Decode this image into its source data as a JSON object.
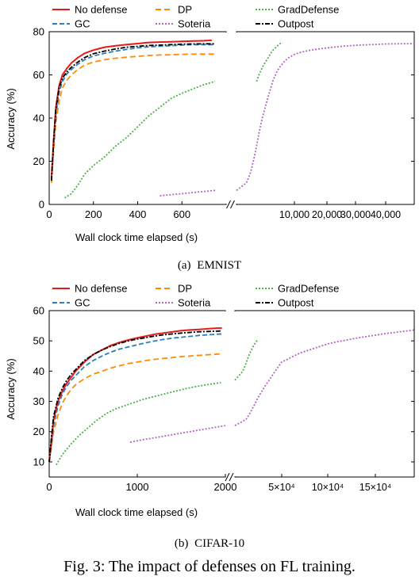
{
  "figure_caption": "Fig. 3: The impact of defenses on FL training.",
  "series_styles": {
    "No defense": {
      "color": "#e41a1c",
      "dash": ""
    },
    "DP": {
      "color": "#ff8c00",
      "dash": "7,4"
    },
    "GradDefense": {
      "color": "#4daf4a",
      "dash": "2,2"
    },
    "GC": {
      "color": "#2c7fb8",
      "dash": "6,3"
    },
    "Soteria": {
      "color": "#b266c2",
      "dash": "2,2"
    },
    "Outpost": {
      "color": "#000000",
      "dash": "6,2,2,2"
    }
  },
  "chart_data": [
    {
      "type": "line",
      "subcaption": "(a)",
      "dataset": "EMNIST",
      "xlabel": "Wall clock time elapsed (s)",
      "ylabel": "Accuracy (%)",
      "ylim": [
        0,
        80
      ],
      "yticks": [
        "0",
        "20",
        "40",
        "60",
        "80"
      ],
      "grid": false,
      "legend_placement": "top",
      "left_panel": {
        "xlim": [
          0,
          800
        ],
        "xticks": [
          "0",
          "200",
          "400",
          "600"
        ],
        "xtick_values": [
          0,
          200,
          400,
          600
        ]
      },
      "right_panel": {
        "xlim": [
          0,
          45000
        ],
        "xticks": [
          "10,000",
          "20,000",
          "30,000",
          "40,000"
        ],
        "xtick_values": [
          10000,
          20000,
          30000,
          40000
        ]
      },
      "series": [
        {
          "name": "No defense",
          "panel": "left",
          "x": [
            10,
            20,
            30,
            45,
            60,
            80,
            100,
            130,
            160,
            200,
            250,
            300,
            350,
            400,
            450,
            500,
            550,
            600,
            650,
            700,
            735
          ],
          "y": [
            12,
            30,
            45,
            55,
            60,
            63,
            65.5,
            68,
            70,
            71.5,
            72.8,
            73.5,
            74,
            74.5,
            75,
            75.2,
            75.3,
            75.5,
            75.7,
            75.8,
            76
          ]
        },
        {
          "name": "GC",
          "panel": "left",
          "x": [
            10,
            20,
            30,
            45,
            60,
            80,
            100,
            130,
            160,
            200,
            250,
            300,
            350,
            400,
            450,
            500,
            550,
            600,
            650,
            700,
            745
          ],
          "y": [
            11,
            28,
            42,
            52,
            57,
            60.5,
            62.5,
            65,
            67,
            68.8,
            70,
            71,
            71.8,
            72.5,
            73,
            73.3,
            73.5,
            73.8,
            74,
            74,
            74
          ]
        },
        {
          "name": "DP",
          "panel": "left",
          "x": [
            10,
            20,
            30,
            45,
            60,
            80,
            100,
            130,
            160,
            200,
            250,
            300,
            350,
            400,
            450,
            500,
            550,
            600,
            650,
            700,
            745
          ],
          "y": [
            10,
            25,
            38,
            48,
            54,
            57.5,
            60,
            62.5,
            64.5,
            66,
            67,
            67.7,
            68.2,
            68.6,
            69,
            69.2,
            69.3,
            69.5,
            69.6,
            69.6,
            69.6
          ]
        },
        {
          "name": "Outpost",
          "panel": "left",
          "x": [
            10,
            20,
            30,
            45,
            60,
            80,
            100,
            130,
            160,
            200,
            250,
            300,
            350,
            400,
            450,
            500,
            550,
            600,
            650,
            700,
            745
          ],
          "y": [
            11,
            29,
            44,
            54,
            58.5,
            61.5,
            63.5,
            66,
            68,
            69.8,
            71,
            72,
            72.8,
            73.2,
            73.6,
            73.8,
            74,
            74.2,
            74.3,
            74.4,
            74.4
          ]
        },
        {
          "name": "GradDefense",
          "panel": "left",
          "x": [
            70,
            100,
            130,
            160,
            200,
            250,
            300,
            350,
            400,
            450,
            500,
            550,
            600,
            650,
            700,
            750
          ],
          "y": [
            3,
            5,
            9,
            14,
            18,
            22,
            27,
            31,
            36,
            41,
            45,
            49,
            51.5,
            53.5,
            55.5,
            57
          ]
        },
        {
          "name": "GradDefense",
          "panel": "right",
          "x": [
            1200,
            1500,
            2000,
            2500,
            3000,
            3500,
            4000,
            4500,
            5000,
            5500,
            6000
          ],
          "y": [
            57,
            60,
            63.5,
            66,
            68,
            70,
            71.5,
            72.5,
            73.5,
            74.2,
            75
          ]
        },
        {
          "name": "Soteria",
          "panel": "left",
          "x": [
            500,
            550,
            600,
            650,
            700,
            750
          ],
          "y": [
            4,
            4.5,
            5,
            5.5,
            6,
            6.5
          ]
        },
        {
          "name": "Soteria",
          "panel": "right",
          "x": [
            0,
            300,
            600,
            900,
            1200,
            1500,
            2000,
            2500,
            3000,
            3500,
            4000,
            5000,
            6000,
            7000,
            8000,
            10000,
            12000,
            15000,
            20000,
            25000,
            30000,
            35000,
            40000,
            45000
          ],
          "y": [
            6.5,
            10,
            15,
            21,
            27,
            33,
            40,
            45.5,
            50,
            54,
            57.5,
            62,
            64.5,
            66.5,
            67.8,
            69.5,
            70.5,
            71.5,
            72.5,
            73.2,
            73.7,
            74,
            74.3,
            74.5
          ]
        }
      ]
    },
    {
      "type": "line",
      "subcaption": "(b)",
      "dataset": "CIFAR-10",
      "xlabel": "Wall clock time elapsed (s)",
      "ylabel": "Accuracy (%)",
      "ylim": [
        5,
        60
      ],
      "yticks": [
        "10",
        "20",
        "30",
        "40",
        "50",
        "60"
      ],
      "grid": false,
      "legend_placement": "top",
      "left_panel": {
        "xlim": [
          0,
          2000
        ],
        "xticks": [
          "0",
          "1000",
          "2000"
        ],
        "xtick_values": [
          0,
          1000,
          2000
        ]
      },
      "right_panel": {
        "xlim": [
          0,
          190000
        ],
        "xticks": [
          "5×10⁴",
          "10×10⁴",
          "15×10⁴"
        ],
        "xtick_values": [
          50000,
          100000,
          150000
        ]
      },
      "series": [
        {
          "name": "No defense",
          "panel": "left",
          "x": [
            0,
            25,
            50,
            100,
            150,
            200,
            250,
            300,
            400,
            500,
            600,
            700,
            800,
            900,
            1000,
            1100,
            1200,
            1300,
            1400,
            1500,
            1600,
            1700,
            1800,
            1900,
            1960
          ],
          "y": [
            10,
            17,
            24,
            30,
            33.5,
            36,
            38,
            40,
            43,
            45.5,
            47,
            48.5,
            49.5,
            50.3,
            51,
            51.6,
            52.2,
            52.6,
            53,
            53.4,
            53.6,
            53.8,
            54,
            54.2,
            54.2
          ]
        },
        {
          "name": "GC",
          "panel": "left",
          "x": [
            0,
            25,
            50,
            100,
            150,
            200,
            250,
            300,
            400,
            500,
            600,
            700,
            800,
            900,
            1000,
            1100,
            1200,
            1300,
            1400,
            1500,
            1600,
            1700,
            1800,
            1900,
            1960
          ],
          "y": [
            10,
            16,
            22,
            28.5,
            32.5,
            35,
            37,
            38.5,
            41.5,
            43.5,
            45,
            46.3,
            47.3,
            48,
            48.7,
            49.4,
            50,
            50.5,
            50.9,
            51.2,
            51.5,
            51.8,
            52,
            52.2,
            52.3
          ]
        },
        {
          "name": "DP",
          "panel": "left",
          "x": [
            0,
            25,
            50,
            100,
            150,
            200,
            250,
            300,
            400,
            500,
            600,
            700,
            800,
            900,
            1000,
            1100,
            1200,
            1300,
            1400,
            1500,
            1600,
            1700,
            1800,
            1900,
            1960
          ],
          "y": [
            10,
            15,
            20,
            25.5,
            29.5,
            32,
            34,
            35.5,
            37.5,
            39,
            40,
            41,
            41.8,
            42.5,
            43,
            43.5,
            43.9,
            44.2,
            44.5,
            44.8,
            45,
            45.2,
            45.4,
            45.6,
            45.7
          ]
        },
        {
          "name": "Outpost",
          "panel": "left",
          "x": [
            0,
            25,
            50,
            100,
            150,
            200,
            250,
            300,
            400,
            500,
            600,
            700,
            800,
            900,
            1000,
            1100,
            1200,
            1300,
            1400,
            1500,
            1600,
            1700,
            1800,
            1900,
            1960
          ],
          "y": [
            10,
            18,
            25,
            31,
            34.5,
            37,
            39,
            40.5,
            43.5,
            45.5,
            47,
            48.2,
            49.2,
            50,
            50.6,
            51.1,
            51.6,
            52,
            52.3,
            52.6,
            52.8,
            53,
            53.1,
            53.2,
            53.3
          ]
        },
        {
          "name": "GradDefense",
          "panel": "left",
          "x": [
            80,
            150,
            250,
            350,
            450,
            550,
            650,
            750,
            850,
            950,
            1050,
            1150,
            1250,
            1350,
            1450,
            1550,
            1650,
            1750,
            1850,
            1950
          ],
          "y": [
            9,
            12.5,
            16,
            19,
            21.5,
            24,
            26,
            27.5,
            28.5,
            29.5,
            30.5,
            31.3,
            32,
            32.8,
            33.5,
            34.2,
            34.8,
            35.3,
            35.8,
            36.2
          ]
        },
        {
          "name": "GradDefense",
          "panel": "right",
          "x": [
            0,
            1000,
            2000,
            3000,
            4000,
            5000,
            6000,
            7000,
            8000,
            9000,
            10000
          ],
          "y": [
            37,
            40,
            42.5,
            44.5,
            46,
            47,
            48,
            48.8,
            49.4,
            49.9,
            50.3
          ]
        },
        {
          "name": "Soteria",
          "panel": "left",
          "x": [
            920,
            1000,
            1100,
            1200,
            1300,
            1400,
            1500,
            1600,
            1700,
            1800,
            1900,
            2000
          ],
          "y": [
            16.5,
            17,
            17.5,
            18,
            18.5,
            19,
            19.5,
            20,
            20.5,
            21,
            21.5,
            22
          ]
        },
        {
          "name": "Soteria",
          "panel": "right",
          "x": [
            0,
            2000,
            4000,
            6000,
            8000,
            10000,
            15000,
            20000,
            25000,
            30000,
            40000,
            50000,
            60000,
            70000,
            80000,
            90000,
            100000,
            110000,
            120000,
            130000,
            140000,
            150000,
            160000,
            170000,
            180000,
            190000
          ],
          "y": [
            22,
            24,
            26,
            28,
            29.5,
            31,
            33.5,
            35.5,
            37,
            38.5,
            41,
            43,
            44.5,
            46,
            47,
            48,
            49,
            49.7,
            50.3,
            50.9,
            51.4,
            51.9,
            52.4,
            52.8,
            53.2,
            53.6
          ]
        }
      ]
    }
  ]
}
